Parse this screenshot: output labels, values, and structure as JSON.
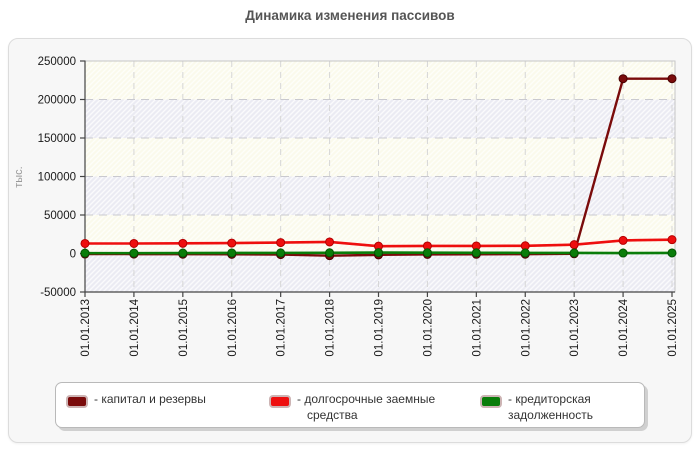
{
  "title": "Динамика изменения пассивов",
  "chart_data": {
    "type": "line",
    "title": "Динамика изменения пассивов",
    "xlabel": "",
    "ylabel": "тыс.",
    "ylim": [
      -50000,
      250000
    ],
    "yticks": [
      -50000,
      0,
      50000,
      100000,
      150000,
      200000,
      250000
    ],
    "grid": true,
    "legend_position": "bottom",
    "x": [
      "01.01.2013",
      "01.01.2014",
      "01.01.2015",
      "01.01.2016",
      "01.01.2017",
      "01.01.2018",
      "01.01.2019",
      "01.01.2020",
      "01.01.2021",
      "01.01.2022",
      "01.01.2023",
      "01.01.2024",
      "01.01.2025"
    ],
    "series": [
      {
        "name": "капитал и резервы",
        "color": "#7a0b0b",
        "dot_stroke": "#4a0000",
        "values": [
          -700,
          -800,
          -900,
          -1100,
          -1400,
          -2800,
          -1800,
          -1200,
          -1000,
          -900,
          -400,
          227000,
          227000
        ]
      },
      {
        "name": "долгосрочные заемные средства",
        "color": "#ee0f0f",
        "dot_stroke": "#b40000",
        "values": [
          13000,
          13000,
          13200,
          13500,
          14200,
          15000,
          9500,
          9800,
          9800,
          10000,
          11500,
          17000,
          18000
        ]
      },
      {
        "name": "кредиторская задолженность",
        "color": "#0a7d0a",
        "dot_stroke": "#045604",
        "values": [
          500,
          500,
          600,
          700,
          800,
          900,
          1200,
          1000,
          900,
          800,
          700,
          600,
          700
        ]
      }
    ]
  },
  "legend": {
    "items": [
      {
        "label": "- капитал и резервы"
      },
      {
        "label": "- долгосрочные заемные средства"
      },
      {
        "label": "- кредиторская задолженность"
      }
    ]
  },
  "style": {
    "band_a": "#fbfaec",
    "band_b": "#ebebf3",
    "grid_h": "#c9c9cf",
    "grid_v": "#d6d6d6",
    "plot_border": "#c6c6c6",
    "axis": "#444444",
    "tick_text": "#1a1a1a",
    "muted_text": "#999999",
    "title_color": "#555555"
  }
}
